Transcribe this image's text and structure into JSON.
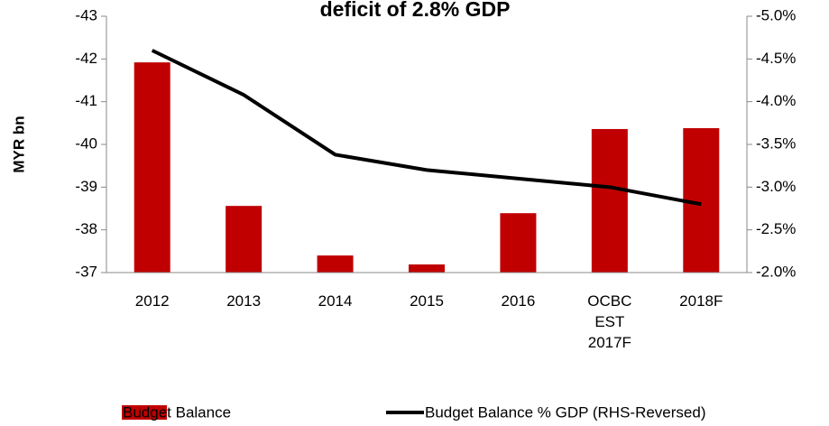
{
  "chart_data": {
    "type": "bar",
    "title": "deficit of 2.8% GDP",
    "y_label": "MYR bn",
    "categories": [
      "2012",
      "2013",
      "2014",
      "2015",
      "2016",
      "OCBC EST 2017F",
      "2018F"
    ],
    "series": [
      {
        "name": "Budget Balance",
        "type": "bar",
        "color": "#c00000",
        "values": [
          -41.92,
          -38.56,
          -37.4,
          -37.19,
          -38.39,
          -40.36,
          -40.38
        ]
      },
      {
        "name": "Budget Balance % GDP (RHS-Reversed)",
        "type": "line",
        "color": "#000000",
        "axis": "y2",
        "values": [
          -4.6,
          -4.08,
          -3.38,
          -3.2,
          -3.1,
          -3.0,
          -2.8
        ]
      }
    ],
    "ylim": [
      -37,
      -43
    ],
    "yticks": [
      -37,
      -38,
      -39,
      -40,
      -41,
      -42,
      -43
    ],
    "y2lim": [
      -2.0,
      -5.0
    ],
    "y2ticks": [
      {
        "value": -2.0,
        "label": "-2.0%"
      },
      {
        "value": -2.5,
        "label": "-2.5%"
      },
      {
        "value": -3.0,
        "label": "-3.0%"
      },
      {
        "value": -3.5,
        "label": "-3.5%"
      },
      {
        "value": -4.0,
        "label": "-4.0%"
      },
      {
        "value": -4.5,
        "label": "-4.5%"
      },
      {
        "value": -5.0,
        "label": "-5.0%"
      }
    ],
    "legend": "bottom"
  }
}
